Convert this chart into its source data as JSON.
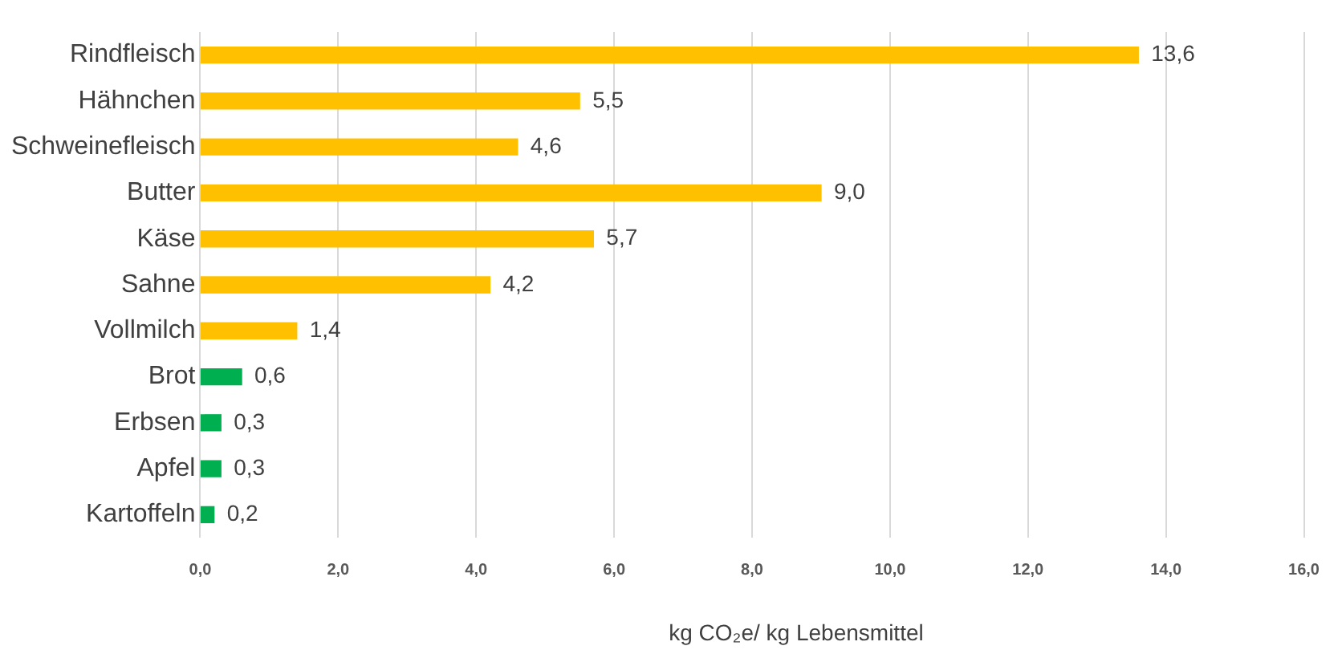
{
  "chart_data": {
    "type": "bar",
    "orientation": "horizontal",
    "xlabel": "kg CO₂e/ kg Lebensmittel",
    "categories": [
      "Rindfleisch",
      "Hähnchen",
      "Schweinefleisch",
      "Butter",
      "Käse",
      "Sahne",
      "Vollmilch",
      "Brot",
      "Erbsen",
      "Apfel",
      "Kartoffeln"
    ],
    "values": [
      13.6,
      5.5,
      4.6,
      9.0,
      5.7,
      4.2,
      1.4,
      0.6,
      0.3,
      0.3,
      0.2
    ],
    "value_labels": [
      "13,6",
      "5,5",
      "4,6",
      "9,0",
      "5,7",
      "4,2",
      "1,4",
      "0,6",
      "0,3",
      "0,3",
      "0,2"
    ],
    "colors": [
      "#ffc000",
      "#ffc000",
      "#ffc000",
      "#ffc000",
      "#ffc000",
      "#ffc000",
      "#ffc000",
      "#00b050",
      "#00b050",
      "#00b050",
      "#00b050"
    ],
    "xlim": [
      0,
      16
    ],
    "xticks": [
      {
        "value": 0,
        "label": "0,0"
      },
      {
        "value": 2,
        "label": "2,0"
      },
      {
        "value": 4,
        "label": "4,0"
      },
      {
        "value": 6,
        "label": "6,0"
      },
      {
        "value": 8,
        "label": "8,0"
      },
      {
        "value": 10,
        "label": "10,0"
      },
      {
        "value": 12,
        "label": "12,0"
      },
      {
        "value": 14,
        "label": "14,0"
      },
      {
        "value": 16,
        "label": "16,0"
      }
    ],
    "grid": "x"
  }
}
